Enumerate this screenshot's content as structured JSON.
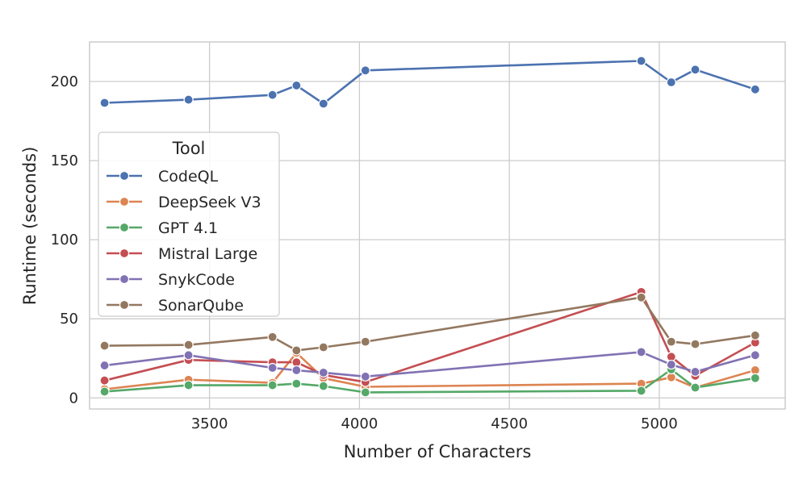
{
  "chart_data": {
    "type": "line",
    "xlabel": "Number of Characters",
    "ylabel": "Runtime (seconds)",
    "xlim": [
      3100,
      5420
    ],
    "ylim": [
      -7,
      225
    ],
    "xticks": [
      3500,
      4000,
      4500,
      5000
    ],
    "yticks": [
      0,
      50,
      100,
      150,
      200
    ],
    "grid": true,
    "legend": {
      "title": "Tool",
      "placement": "center-left"
    },
    "x": [
      3150,
      3430,
      3710,
      3790,
      3880,
      4020,
      4940,
      5040,
      5120,
      5320
    ],
    "series": [
      {
        "name": "CodeQL",
        "color": "#4c72b0",
        "values": [
          186.5,
          188.5,
          191.5,
          197.5,
          186,
          207,
          213,
          199.5,
          207.5,
          195
        ]
      },
      {
        "name": "DeepSeek V3",
        "color": "#dd8452",
        "values": [
          5.5,
          11.5,
          9.5,
          28.5,
          12.5,
          7,
          9,
          13,
          6.5,
          17.5
        ]
      },
      {
        "name": "GPT 4.1",
        "color": "#55a868",
        "values": [
          4,
          8,
          8,
          9,
          7.5,
          3.5,
          4.5,
          18,
          6.5,
          12.5
        ]
      },
      {
        "name": "Mistral Large",
        "color": "#c44e52",
        "values": [
          11,
          24,
          22.5,
          22.5,
          14.5,
          10,
          67,
          26,
          14,
          35
        ]
      },
      {
        "name": "SnykCode",
        "color": "#8172b3",
        "values": [
          20.5,
          27,
          19,
          17.5,
          16,
          13.5,
          29,
          21,
          16.5,
          27
        ]
      },
      {
        "name": "SonarQube",
        "color": "#937860",
        "values": [
          33,
          33.5,
          38.5,
          30,
          32,
          35.5,
          63.5,
          35.5,
          34,
          39.5
        ]
      }
    ]
  }
}
